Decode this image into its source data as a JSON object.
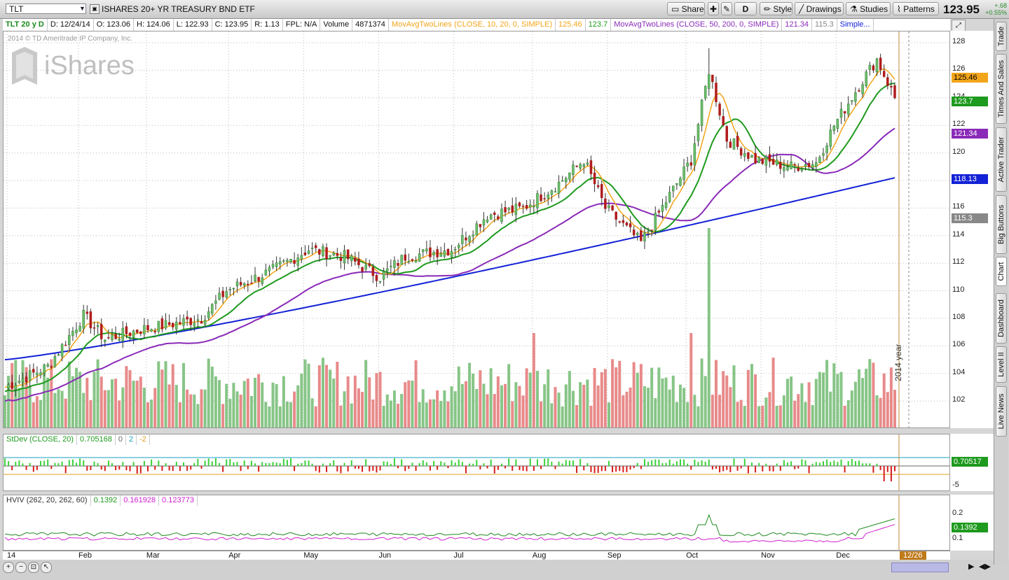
{
  "toolbar": {
    "symbol": "TLT",
    "description": "ISHARES 20+ YR TREASURY BND ETF",
    "share": "Share",
    "period": "D",
    "style": "Style",
    "drawings": "Drawings",
    "studies": "Studies",
    "patterns": "Patterns",
    "last_price": "123.95",
    "change": "+.68",
    "change_pct": "+0.55%"
  },
  "infobar": {
    "symbol_period": "TLT 20 y D",
    "date": "D: 12/24/14",
    "open": "O: 123.06",
    "high": "H: 124.06",
    "low": "L: 122.93",
    "close": "C: 123.95",
    "range": "R: 1.13",
    "fpl": "FPL: N/A",
    "volume_label": "Volume",
    "volume_value": "4871374",
    "ma1_label": "MovAvgTwoLines (CLOSE, 10, 20, 0, SIMPLE)",
    "ma1_v1": "125.46",
    "ma1_v2": "123.7",
    "ma2_label": "MovAvgTwoLines (CLOSE, 50, 200, 0, SIMPLE)",
    "ma2_v1": "121.34",
    "ma2_v2": "115.3",
    "simple": "Simple..."
  },
  "chart": {
    "copyright": "2014 © TD Ameritrade IP Company, Inc.",
    "watermark": "iShares",
    "year_label": "2014 year",
    "date_badge": "12/26",
    "price_labels": [
      "128",
      "126",
      "124",
      "122",
      "120",
      "118",
      "116",
      "114",
      "112",
      "110",
      "108",
      "106",
      "104",
      "102"
    ],
    "month_labels": [
      "14",
      "Feb",
      "Mar",
      "Apr",
      "May",
      "Jun",
      "Jul",
      "Aug",
      "Sep",
      "Oct",
      "Nov",
      "Dec"
    ],
    "tags": {
      "ma10": "125.46",
      "ma20": "123.7",
      "ma50": "121.34",
      "ma100": "118.13",
      "ma200": "115.3"
    }
  },
  "stdev": {
    "label": "StDev (CLOSE, 20)",
    "value": "0.705168",
    "v0": "0",
    "v2": "2",
    "vm2": "-2",
    "tag": "0.70517",
    "axis": "-5"
  },
  "hviv": {
    "label": "HVIV (262, 20, 262, 60)",
    "v1": "0.1392",
    "v2": "0.161928",
    "v3": "0.123773",
    "tag": "0.1392",
    "axis_hi": "0.2",
    "axis_lo": "0.1"
  },
  "sidebar": {
    "tabs": [
      "Trade",
      "Times And Sales",
      "Active Trader",
      "Big Buttons",
      "Chart",
      "Dashboard",
      "Level II",
      "Live News"
    ]
  },
  "colors": {
    "up": "#87c587",
    "down": "#e88a8a",
    "ma10": "#f2a51a",
    "ma20": "#1e9a1e",
    "ma50": "#8a2ab8",
    "ma100": "#1322d6",
    "ma200": "#777777"
  }
}
